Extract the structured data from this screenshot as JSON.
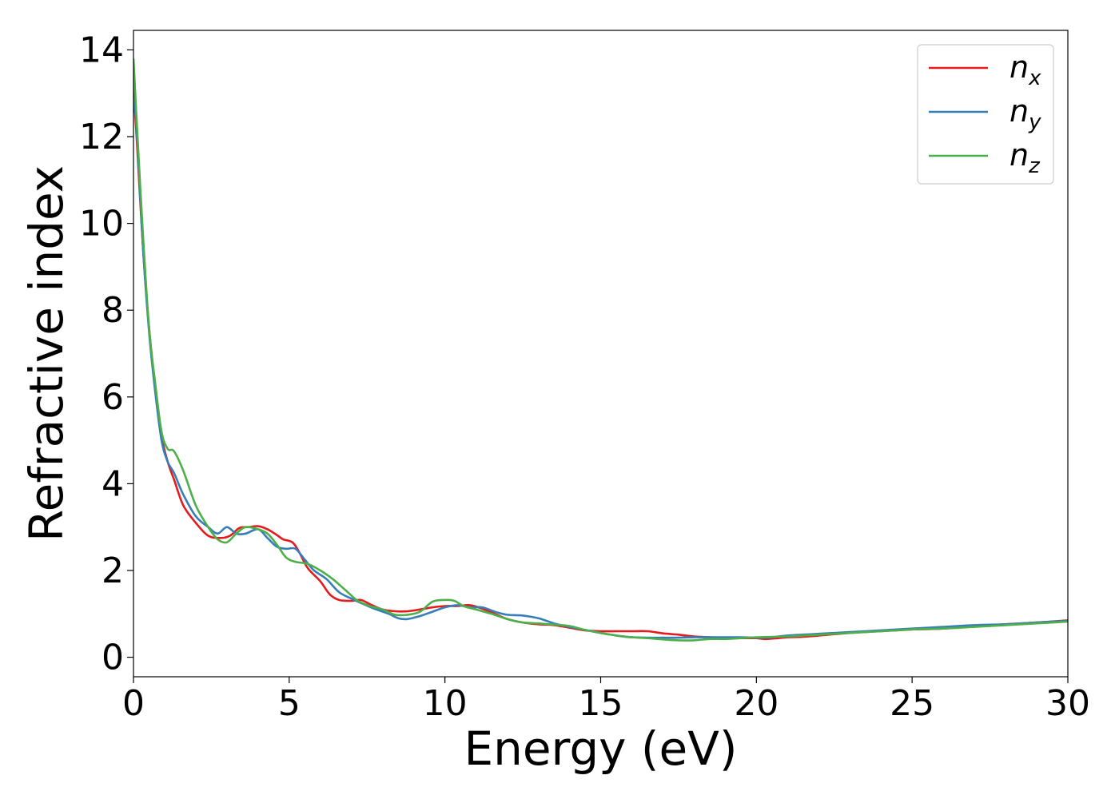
{
  "chart_data": {
    "type": "line",
    "xlabel": "Energy (eV)",
    "ylabel": "Refractive index",
    "xlim": [
      0,
      30
    ],
    "ylim": [
      -0.45,
      14.45
    ],
    "xticks": [
      0,
      5,
      10,
      15,
      20,
      25,
      30
    ],
    "yticks": [
      0,
      2,
      4,
      6,
      8,
      10,
      12,
      14
    ],
    "grid": false,
    "legend_position": "top-right",
    "series": [
      {
        "name": "n",
        "subscript": "x",
        "color": "#e41a1c",
        "x": [
          0,
          0.1,
          0.3,
          0.5,
          0.7,
          0.9,
          1.1,
          1.3,
          1.6,
          2.0,
          2.4,
          2.8,
          3.1,
          3.4,
          3.7,
          4.0,
          4.3,
          4.6,
          4.8,
          5.1,
          5.3,
          5.6,
          6.0,
          6.3,
          6.6,
          7.0,
          7.3,
          7.6,
          8.0,
          8.4,
          8.8,
          9.2,
          9.6,
          10.0,
          10.4,
          10.8,
          11.2,
          11.6,
          12.0,
          12.5,
          13.0,
          13.5,
          14.0,
          14.5,
          15.0,
          15.5,
          16.0,
          16.5,
          17.0,
          17.5,
          18.0,
          18.5,
          19.0,
          19.5,
          20.0,
          20.3,
          20.7,
          21.0,
          21.5,
          22.0,
          23.0,
          24.0,
          25.0,
          26.0,
          27.0,
          28.0,
          29.0,
          30.0
        ],
        "y": [
          13.1,
          12.0,
          9.5,
          7.6,
          6.2,
          5.1,
          4.5,
          4.1,
          3.5,
          3.1,
          2.8,
          2.75,
          2.8,
          2.98,
          3.0,
          3.02,
          2.95,
          2.82,
          2.72,
          2.65,
          2.45,
          2.05,
          1.75,
          1.45,
          1.32,
          1.3,
          1.32,
          1.22,
          1.1,
          1.06,
          1.06,
          1.1,
          1.15,
          1.18,
          1.18,
          1.2,
          1.12,
          1.0,
          0.88,
          0.8,
          0.76,
          0.74,
          0.68,
          0.62,
          0.6,
          0.6,
          0.6,
          0.6,
          0.55,
          0.52,
          0.48,
          0.46,
          0.45,
          0.44,
          0.44,
          0.42,
          0.44,
          0.46,
          0.47,
          0.5,
          0.56,
          0.6,
          0.64,
          0.66,
          0.72,
          0.76,
          0.8,
          0.85
        ]
      },
      {
        "name": "n",
        "subscript": "y",
        "color": "#377eb8",
        "x": [
          0,
          0.1,
          0.3,
          0.5,
          0.7,
          0.9,
          1.1,
          1.3,
          1.6,
          2.0,
          2.4,
          2.7,
          3.0,
          3.3,
          3.6,
          4.0,
          4.3,
          4.6,
          4.9,
          5.2,
          5.5,
          5.8,
          6.2,
          6.6,
          7.0,
          7.4,
          7.8,
          8.2,
          8.5,
          8.8,
          9.2,
          9.6,
          10.0,
          10.4,
          10.8,
          11.2,
          11.6,
          12.0,
          12.5,
          13.0,
          13.5,
          14.0,
          14.5,
          15.0,
          15.5,
          16.0,
          16.5,
          17.0,
          17.5,
          18.0,
          18.5,
          19.0,
          19.5,
          20.0,
          20.5,
          21.0,
          22.0,
          23.0,
          24.0,
          25.0,
          26.0,
          27.0,
          28.0,
          29.0,
          30.0
        ],
        "y": [
          12.9,
          12.2,
          9.5,
          7.5,
          6.1,
          5.0,
          4.5,
          4.25,
          3.75,
          3.25,
          3.0,
          2.85,
          3.0,
          2.85,
          2.85,
          2.95,
          2.75,
          2.55,
          2.5,
          2.5,
          2.25,
          2.0,
          1.8,
          1.5,
          1.35,
          1.22,
          1.1,
          1.0,
          0.9,
          0.88,
          0.95,
          1.05,
          1.15,
          1.2,
          1.15,
          1.15,
          1.05,
          0.98,
          0.96,
          0.9,
          0.78,
          0.7,
          0.63,
          0.56,
          0.5,
          0.46,
          0.45,
          0.45,
          0.45,
          0.46,
          0.46,
          0.46,
          0.46,
          0.45,
          0.46,
          0.5,
          0.54,
          0.58,
          0.62,
          0.66,
          0.7,
          0.74,
          0.76,
          0.8,
          0.84
        ]
      },
      {
        "name": "n",
        "subscript": "z",
        "color": "#4daf4a",
        "x": [
          0,
          0.1,
          0.3,
          0.5,
          0.7,
          0.9,
          1.1,
          1.3,
          1.6,
          2.0,
          2.4,
          2.7,
          3.0,
          3.3,
          3.6,
          4.0,
          4.3,
          4.6,
          4.9,
          5.2,
          5.6,
          6.0,
          6.4,
          6.8,
          7.2,
          7.6,
          8.0,
          8.4,
          8.8,
          9.2,
          9.6,
          10.0,
          10.3,
          10.6,
          11.0,
          11.5,
          12.0,
          12.5,
          13.0,
          13.5,
          14.0,
          14.5,
          15.0,
          15.5,
          16.0,
          16.5,
          17.0,
          17.5,
          18.0,
          18.5,
          19.0,
          19.5,
          20.0,
          20.5,
          21.0,
          22.0,
          23.0,
          24.0,
          25.0,
          26.0,
          27.0,
          28.0,
          29.0,
          30.0
        ],
        "y": [
          13.8,
          12.4,
          9.8,
          7.6,
          6.3,
          5.2,
          4.8,
          4.75,
          4.3,
          3.5,
          3.0,
          2.72,
          2.65,
          2.85,
          3.0,
          2.95,
          2.85,
          2.6,
          2.3,
          2.2,
          2.15,
          2.0,
          1.8,
          1.55,
          1.3,
          1.18,
          1.1,
          0.98,
          0.98,
          1.05,
          1.28,
          1.32,
          1.3,
          1.18,
          1.1,
          1.0,
          0.88,
          0.8,
          0.78,
          0.75,
          0.72,
          0.63,
          0.56,
          0.5,
          0.46,
          0.44,
          0.41,
          0.39,
          0.39,
          0.42,
          0.42,
          0.44,
          0.46,
          0.47,
          0.48,
          0.52,
          0.56,
          0.6,
          0.64,
          0.66,
          0.7,
          0.74,
          0.78,
          0.82
        ]
      }
    ]
  }
}
